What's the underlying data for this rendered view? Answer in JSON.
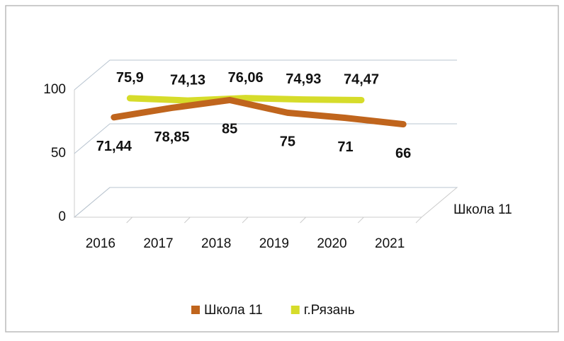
{
  "chart_data": {
    "type": "line3d",
    "categories": [
      "2016",
      "2017",
      "2018",
      "2019",
      "2020",
      "2021"
    ],
    "series": [
      {
        "name": "Школа 11",
        "color": "#c0651d",
        "values": [
          71.44,
          78.85,
          85,
          75,
          71,
          66
        ],
        "value_labels": [
          "71,44",
          "78,85",
          "85",
          "75",
          "71",
          "66"
        ]
      },
      {
        "name": "г.Рязань",
        "color": "#d6dc2a",
        "values": [
          75.9,
          74.13,
          76.06,
          74.93,
          74.47,
          null
        ],
        "value_labels": [
          "75,9",
          "74,13",
          "76,06",
          "74,93",
          "74,47",
          null
        ]
      }
    ],
    "ylim": [
      0,
      100
    ],
    "yticks": [
      0,
      50,
      100
    ],
    "grid": true,
    "series_axis_label": "Школа 11",
    "legend": "bottom"
  }
}
